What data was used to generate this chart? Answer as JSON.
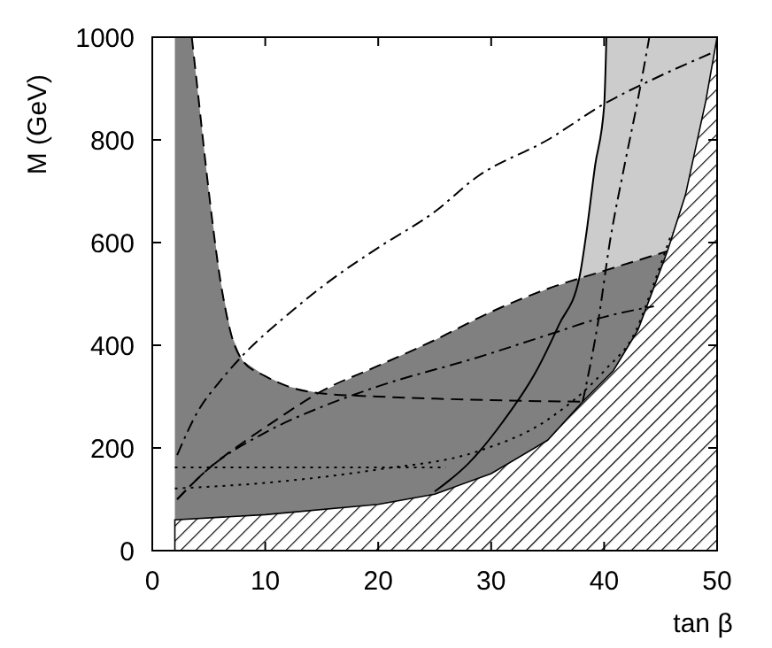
{
  "chart_data": {
    "type": "line",
    "xlabel": "tan β",
    "ylabel": "M (GeV)",
    "xlim": [
      0,
      50
    ],
    "ylim": [
      0,
      1000
    ],
    "xticks": [
      0,
      10,
      20,
      30,
      40,
      50
    ],
    "yticks": [
      0,
      200,
      400,
      600,
      800,
      1000
    ],
    "grid": false,
    "series": [
      {
        "type": "area",
        "color": "#cccccc",
        "x": [
          37.8,
          38.4,
          39.2,
          40,
          40.2,
          50
        ],
        "values": [
          531,
          614,
          750,
          866,
          1000,
          1000
        ]
      },
      {
        "type": "area",
        "color": "#808080",
        "x": [
          2,
          3.5,
          4,
          5,
          6,
          7,
          8,
          10,
          12,
          14.7,
          20,
          25,
          30,
          35,
          40,
          45.6
        ],
        "values": [
          1000,
          1000,
          900,
          700,
          530,
          420,
          370,
          340,
          320,
          307,
          360,
          410,
          465,
          510,
          545,
          583
        ]
      },
      {
        "type": "area",
        "color": "#000000",
        "x": [
          2,
          10,
          20,
          25,
          30,
          35,
          38.1,
          40.8,
          43,
          45.6,
          47.2,
          49,
          50
        ],
        "values": [
          60,
          70,
          90,
          110,
          150,
          215,
          290,
          350,
          430,
          583,
          693,
          876,
          1000
        ]
      },
      {
        "line_style": "solid",
        "color": "#000000",
        "x": [
          25,
          28,
          31,
          34,
          36,
          37.8,
          38.4,
          39.2,
          40,
          40.2
        ],
        "values": [
          115,
          170,
          250,
          350,
          440,
          531,
          614,
          750,
          866,
          1000
        ]
      },
      {
        "type": "line",
        "line_style": "dashed",
        "color": "#000000",
        "x": [
          3.5,
          4,
          5,
          6,
          7,
          8,
          10,
          12,
          14.7,
          20,
          25,
          30,
          38
        ],
        "values": [
          1000,
          900,
          700,
          530,
          420,
          370,
          340,
          320,
          307,
          300,
          296,
          293,
          290
        ]
      },
      {
        "type": "line",
        "line_style": "dashed",
        "color": "#000000",
        "x": [
          2.2,
          5,
          8,
          11,
          14.7,
          20,
          25,
          30,
          35,
          40,
          45.6
        ],
        "values": [
          100,
          160,
          210,
          255,
          307,
          360,
          410,
          465,
          510,
          545,
          583
        ]
      },
      {
        "type": "line",
        "line_style": "dashdot",
        "color": "#000000",
        "x": [
          38.1,
          39.5,
          40.5,
          41.8,
          43,
          44
        ],
        "values": [
          290,
          450,
          600,
          750,
          880,
          1000
        ]
      },
      {
        "type": "line",
        "line_style": "dashdot",
        "color": "#000000",
        "x": [
          2.2,
          4,
          6,
          8,
          12,
          16,
          20,
          25,
          28.75,
          35,
          40,
          45,
          49.5
        ],
        "values": [
          186,
          270,
          330,
          380,
          460,
          530,
          590,
          660,
          728,
          800,
          870,
          925,
          969
        ]
      },
      {
        "type": "line",
        "line_style": "dashdot",
        "color": "#000000",
        "x": [
          2.2,
          5,
          10,
          15,
          20,
          28.75,
          35,
          40,
          44.4
        ],
        "values": [
          100,
          160,
          230,
          280,
          320,
          376,
          420,
          455,
          476
        ]
      },
      {
        "type": "line",
        "line_style": "dotted",
        "color": "#000000",
        "x": [
          2,
          26
        ],
        "values": [
          162,
          162
        ]
      },
      {
        "type": "line",
        "line_style": "dotted",
        "color": "#000000",
        "x": [
          2,
          10,
          20,
          28.75,
          35,
          40,
          42.8,
          44.4,
          46
        ],
        "values": [
          121,
          132,
          158,
          193,
          255,
          350,
          428,
          520,
          620
        ]
      }
    ]
  }
}
